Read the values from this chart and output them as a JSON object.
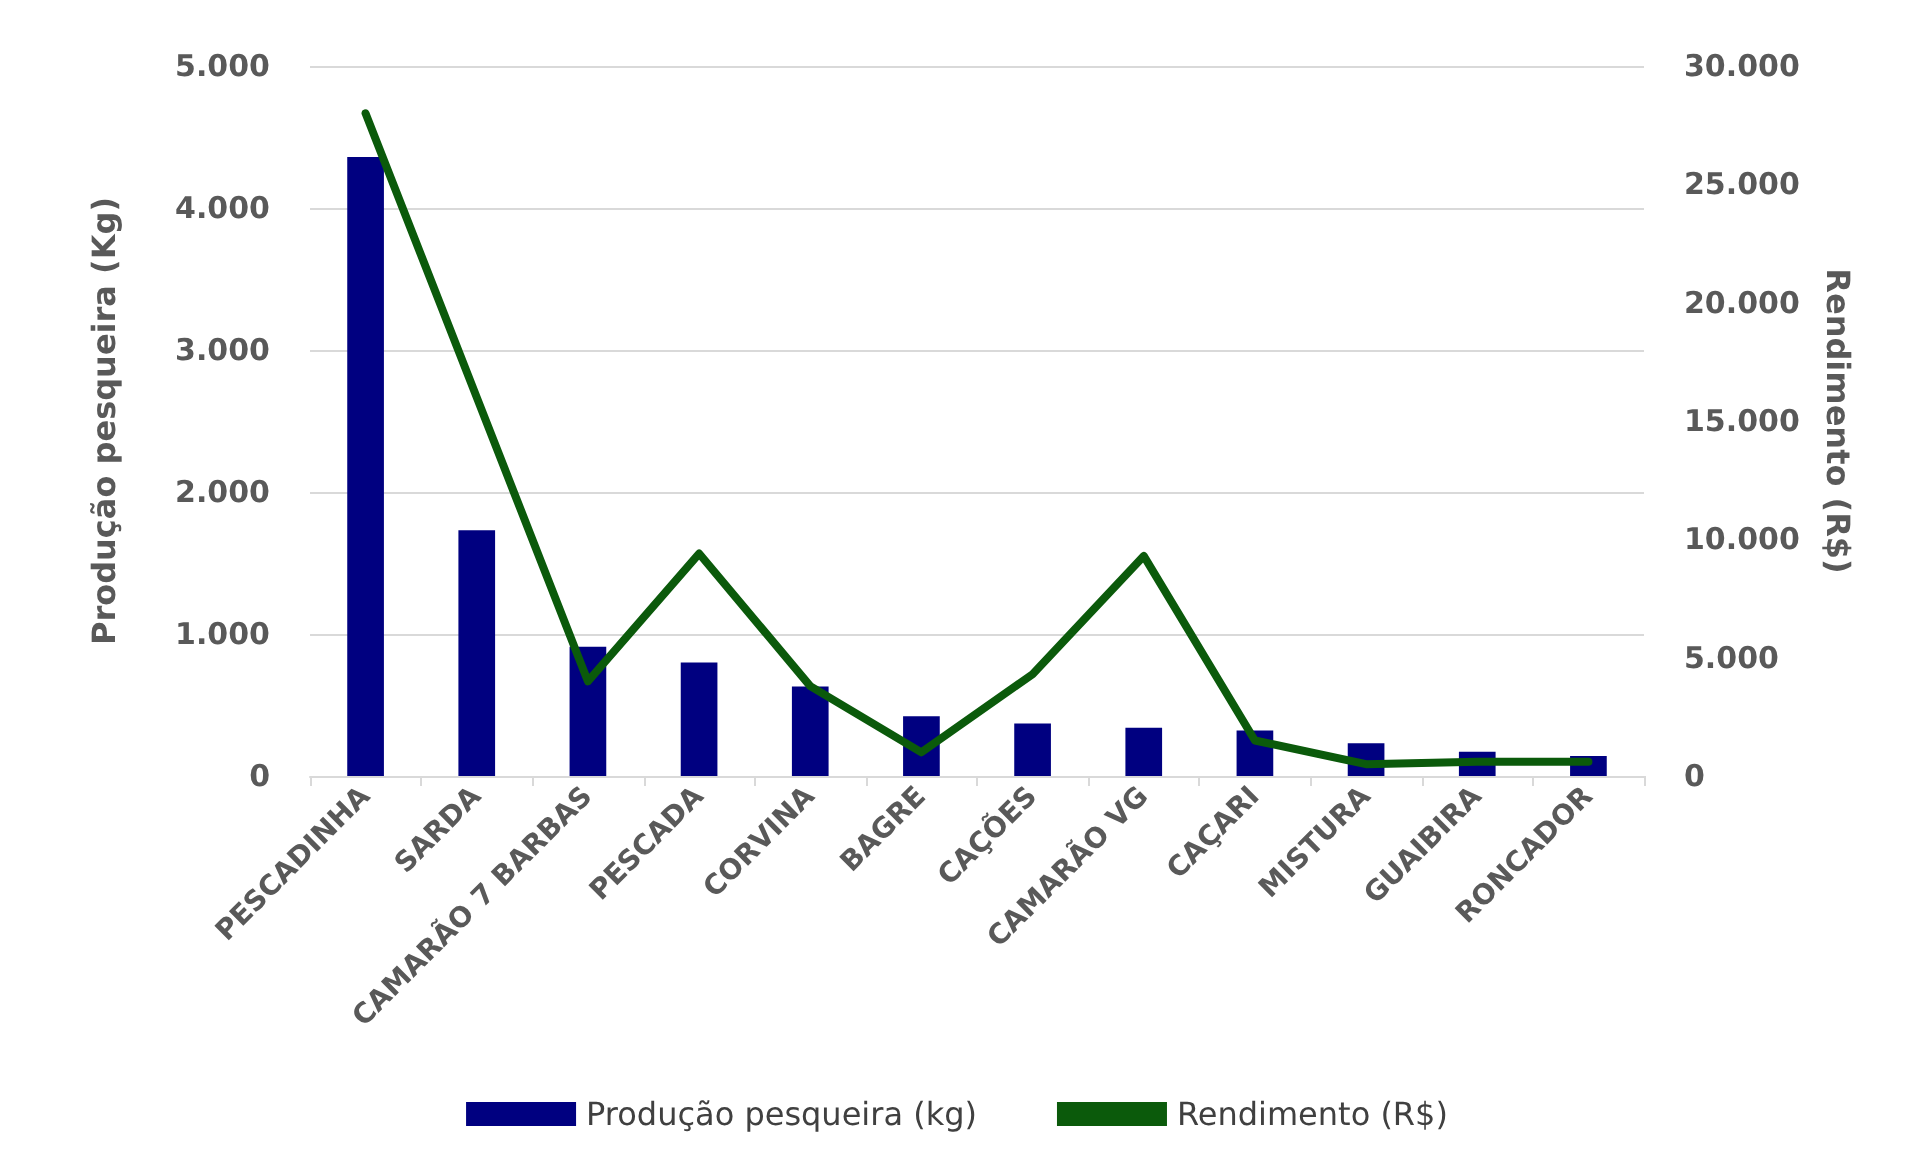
{
  "chart_data": {
    "type": "bar",
    "ylabel": "Produção pesqueira (Kg)",
    "y2label": "Rendimento (R$)",
    "categories": [
      "PESCADINHA",
      "SARDA",
      "CAMARÃO 7 BARBAS",
      "PESCADA",
      "CORVINA",
      "BAGRE",
      "CAÇÕES",
      "CAMARÃO VG",
      "CAÇARI",
      "MISTURA",
      "GUAIBIRA",
      "RONCADOR"
    ],
    "series": [
      {
        "name": "Produção pesqueira (kg)",
        "color": "#000080",
        "values": [
          4360,
          1730,
          910,
          800,
          630,
          420,
          370,
          340,
          320,
          230,
          170,
          140
        ]
      },
      {
        "name": "Rendimento (R$)",
        "type": "line",
        "axis": "y2",
        "color": "#0b5a0b",
        "values": [
          28000,
          16000,
          4000,
          9400,
          3800,
          1000,
          4300,
          9300,
          1500,
          500,
          600,
          600
        ]
      }
    ],
    "ylim": [
      0,
      5000
    ],
    "yticks": [
      {
        "value": 0,
        "label": "0"
      },
      {
        "value": 1000,
        "label": "1.000"
      },
      {
        "value": 2000,
        "label": "2.000"
      },
      {
        "value": 3000,
        "label": "3.000"
      },
      {
        "value": 4000,
        "label": "4.000"
      },
      {
        "value": 5000,
        "label": "5.000"
      }
    ],
    "y2lim": [
      0,
      30000
    ],
    "y2ticks": [
      {
        "value": 0,
        "label": "0"
      },
      {
        "value": 5000,
        "label": "5.000"
      },
      {
        "value": 10000,
        "label": "10.000"
      },
      {
        "value": 15000,
        "label": "15.000"
      },
      {
        "value": 20000,
        "label": "20.000"
      },
      {
        "value": 25000,
        "label": "25.000"
      },
      {
        "value": 30000,
        "label": "30.000"
      }
    ],
    "grid": "y",
    "legend": "bottom",
    "marker": "none",
    "line_style": "solid"
  }
}
